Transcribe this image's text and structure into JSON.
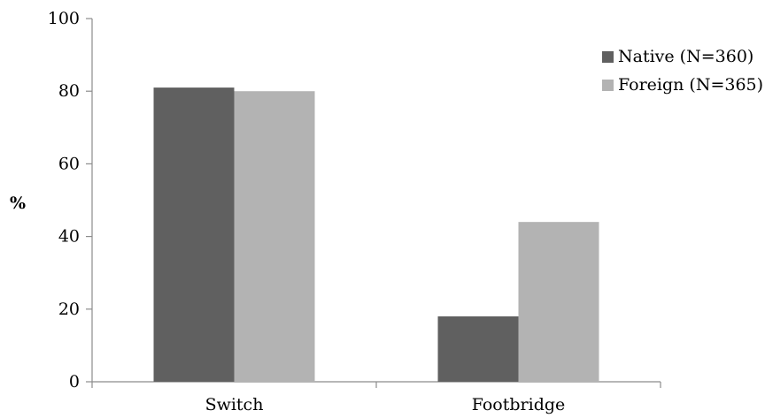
{
  "chart_data": {
    "type": "bar",
    "title": "",
    "xlabel": "",
    "ylabel": "%",
    "ylim": [
      0,
      100
    ],
    "yticks": [
      0,
      20,
      40,
      60,
      80,
      100
    ],
    "categories": [
      "Switch",
      "Footbridge"
    ],
    "series": [
      {
        "name": "Native (N=360)",
        "values": [
          81,
          18
        ],
        "color": "#606060"
      },
      {
        "name": "Foreign (N=365)",
        "values": [
          80,
          44
        ],
        "color": "#b3b3b3"
      }
    ],
    "legend_position": "top-right",
    "grid": false
  }
}
